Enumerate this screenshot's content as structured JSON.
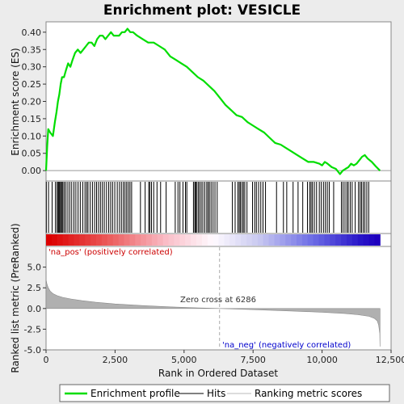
{
  "chart_data": {
    "type": "line",
    "title": "Enrichment plot: VESICLE",
    "xlabel": "Rank in Ordered Dataset",
    "xlim": [
      0,
      12500
    ],
    "x_ticks": [
      0,
      2500,
      5000,
      7500,
      10000,
      12500
    ],
    "x_tick_labels": [
      "0",
      "2,500",
      "5,000",
      "7,500",
      "10,000",
      "12,500"
    ],
    "dataset_size": 12100,
    "es_panel": {
      "ylabel": "Enrichment score (ES)",
      "ylim": [
        -0.03,
        0.43
      ],
      "y_ticks": [
        0.0,
        0.05,
        0.1,
        0.15,
        0.2,
        0.25,
        0.3,
        0.35,
        0.4
      ],
      "y_tick_labels": [
        "0.00",
        "0.05",
        "0.10",
        "0.15",
        "0.20",
        "0.25",
        "0.30",
        "0.35",
        "0.40"
      ],
      "series": [
        {
          "name": "Enrichment profile",
          "color": "#00dd00",
          "x": [
            0,
            40,
            80,
            150,
            250,
            320,
            380,
            430,
            480,
            530,
            580,
            650,
            720,
            800,
            880,
            960,
            1050,
            1150,
            1250,
            1350,
            1450,
            1550,
            1650,
            1750,
            1850,
            1950,
            2050,
            2150,
            2250,
            2350,
            2450,
            2550,
            2650,
            2750,
            2850,
            2950,
            3050,
            3150,
            3300,
            3500,
            3700,
            3900,
            4100,
            4300,
            4500,
            4700,
            4900,
            5100,
            5300,
            5500,
            5700,
            5900,
            6100,
            6300,
            6500,
            6700,
            6900,
            7100,
            7300,
            7500,
            7700,
            7900,
            8100,
            8300,
            8500,
            8700,
            8900,
            9100,
            9300,
            9500,
            9700,
            9900,
            10000,
            10100,
            10200,
            10350,
            10500,
            10650,
            10750,
            10850,
            10950,
            11050,
            11150,
            11250,
            11350,
            11450,
            11550,
            11650,
            11800,
            11950,
            12100
          ],
          "y": [
            0.0,
            0.07,
            0.12,
            0.11,
            0.1,
            0.14,
            0.17,
            0.2,
            0.22,
            0.25,
            0.27,
            0.27,
            0.29,
            0.31,
            0.3,
            0.32,
            0.34,
            0.35,
            0.34,
            0.35,
            0.36,
            0.37,
            0.37,
            0.36,
            0.38,
            0.39,
            0.39,
            0.38,
            0.39,
            0.4,
            0.39,
            0.39,
            0.39,
            0.4,
            0.4,
            0.41,
            0.4,
            0.4,
            0.39,
            0.38,
            0.37,
            0.37,
            0.36,
            0.35,
            0.33,
            0.32,
            0.31,
            0.3,
            0.285,
            0.27,
            0.26,
            0.245,
            0.23,
            0.21,
            0.19,
            0.175,
            0.16,
            0.155,
            0.14,
            0.13,
            0.12,
            0.11,
            0.095,
            0.08,
            0.075,
            0.065,
            0.055,
            0.045,
            0.035,
            0.025,
            0.025,
            0.02,
            0.015,
            0.025,
            0.02,
            0.01,
            0.005,
            -0.01,
            0.0,
            0.005,
            0.01,
            0.02,
            0.015,
            0.02,
            0.03,
            0.04,
            0.045,
            0.035,
            0.025,
            0.012,
            0.0
          ]
        }
      ]
    },
    "hits": {
      "name": "Hits",
      "color": "#000000",
      "positions": [
        10,
        90,
        220,
        340,
        400,
        440,
        470,
        500,
        540,
        580,
        610,
        660,
        720,
        790,
        860,
        930,
        1010,
        1080,
        1160,
        1240,
        1330,
        1410,
        1470,
        1520,
        1600,
        1680,
        1760,
        1830,
        1900,
        1970,
        2040,
        2110,
        2190,
        2270,
        2340,
        2410,
        2490,
        2580,
        2660,
        2730,
        2800,
        2860,
        2920,
        2980,
        3040,
        3100,
        3420,
        3590,
        3720,
        3760,
        3820,
        3900,
        4020,
        4150,
        4350,
        4680,
        4780,
        4850,
        4960,
        5050,
        5100,
        5340,
        5390,
        5420,
        5450,
        5510,
        5560,
        5620,
        5680,
        5750,
        5820,
        5870,
        5920,
        5980,
        6050,
        6120,
        6200,
        6750,
        6850,
        6950,
        7000,
        7040,
        7100,
        7150,
        7200,
        7280,
        7480,
        7560,
        7620,
        7700,
        7780,
        7860,
        7950,
        8350,
        8600,
        8720,
        8950,
        9130,
        9300,
        9470,
        9550,
        9600,
        9650,
        9720,
        9800,
        9900,
        9970,
        10050,
        10120,
        10190,
        10260,
        10420,
        10700,
        10760,
        10830,
        10900,
        10950,
        11020,
        11090,
        11200,
        11320,
        11380,
        11430,
        11490,
        11550,
        11620,
        11690
      ]
    },
    "ranking_panel": {
      "name": "Ranking metric scores",
      "ylabel": "Ranked list metric (PreRanked)",
      "ylim": [
        -5,
        7.5
      ],
      "y_ticks": [
        -5.0,
        -2.5,
        0.0,
        2.5,
        5.0
      ],
      "y_tick_labels": [
        "-5.0",
        "-2.5",
        "0.0",
        "2.5",
        "5.0"
      ],
      "x": [
        0,
        30,
        80,
        150,
        250,
        400,
        600,
        900,
        1300,
        1800,
        2500,
        3500,
        4500,
        5500,
        6286,
        7000,
        8000,
        9000,
        10000,
        10800,
        11300,
        11700,
        11900,
        12000,
        12050,
        12090,
        12100
      ],
      "values": [
        3.5,
        3.0,
        2.5,
        2.1,
        1.8,
        1.55,
        1.35,
        1.15,
        0.95,
        0.75,
        0.55,
        0.35,
        0.2,
        0.08,
        0.0,
        -0.08,
        -0.2,
        -0.32,
        -0.45,
        -0.6,
        -0.75,
        -0.95,
        -1.2,
        -1.5,
        -2.0,
        -3.0,
        -4.6
      ]
    },
    "zero_cross": {
      "position": 6286,
      "label": "Zero cross at 6286"
    },
    "annotations": {
      "na_pos": "'na_pos' (positively correlated)",
      "na_neg": "'na_neg' (negatively correlated)"
    },
    "colors": {
      "na_pos_text": "#cc0000",
      "na_neg_text": "#0000cc",
      "profile": "#00dd00",
      "ranking_fill": "#b0b0b0"
    },
    "legend": {
      "placement": "bottom",
      "entries": [
        {
          "label": "Enrichment profile",
          "color": "#00dd00",
          "style": "thick-line"
        },
        {
          "label": "Hits",
          "color": "#000000",
          "style": "line"
        },
        {
          "label": "Ranking metric scores",
          "color": "#bbbbbb",
          "style": "thin-line"
        }
      ]
    }
  }
}
